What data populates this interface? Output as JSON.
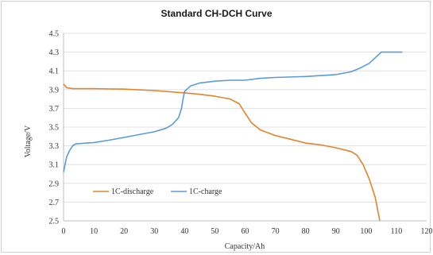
{
  "chart_data": {
    "type": "line",
    "title": "Standard CH-DCH Curve",
    "xlabel": "Capacity/Ah",
    "ylabel": "Voltage/V",
    "xlim": [
      0,
      120
    ],
    "ylim": [
      2.5,
      4.5
    ],
    "x_ticks": [
      "0",
      "10",
      "20",
      "30",
      "40",
      "50",
      "60",
      "70",
      "80",
      "90",
      "100",
      "110",
      "120"
    ],
    "y_ticks": [
      "2.5",
      "2.7",
      "2.9",
      "3.1",
      "3.3",
      "3.5",
      "3.7",
      "3.9",
      "4.1",
      "4.3",
      "4.5"
    ],
    "grid": "horizontal",
    "legend_position": "bottom-left",
    "series": [
      {
        "name": "1C-discharge",
        "color": "#E3832A",
        "points": [
          [
            0,
            3.96
          ],
          [
            1,
            3.92
          ],
          [
            3,
            3.91
          ],
          [
            10,
            3.91
          ],
          [
            20,
            3.905
          ],
          [
            30,
            3.89
          ],
          [
            40,
            3.865
          ],
          [
            45,
            3.85
          ],
          [
            50,
            3.83
          ],
          [
            55,
            3.8
          ],
          [
            58,
            3.75
          ],
          [
            60,
            3.65
          ],
          [
            62,
            3.55
          ],
          [
            65,
            3.47
          ],
          [
            70,
            3.41
          ],
          [
            75,
            3.37
          ],
          [
            80,
            3.33
          ],
          [
            85,
            3.31
          ],
          [
            90,
            3.28
          ],
          [
            95,
            3.24
          ],
          [
            97,
            3.2
          ],
          [
            99,
            3.1
          ],
          [
            101,
            2.95
          ],
          [
            103,
            2.75
          ],
          [
            104.5,
            2.5
          ]
        ]
      },
      {
        "name": "1C-charge",
        "color": "#5B9BD5",
        "points": [
          [
            0,
            3.02
          ],
          [
            0.5,
            3.1
          ],
          [
            1,
            3.18
          ],
          [
            2,
            3.25
          ],
          [
            3,
            3.3
          ],
          [
            4,
            3.32
          ],
          [
            6,
            3.325
          ],
          [
            10,
            3.335
          ],
          [
            15,
            3.36
          ],
          [
            20,
            3.39
          ],
          [
            25,
            3.42
          ],
          [
            30,
            3.45
          ],
          [
            34,
            3.49
          ],
          [
            36,
            3.53
          ],
          [
            38,
            3.6
          ],
          [
            39,
            3.7
          ],
          [
            39.5,
            3.8
          ],
          [
            40,
            3.88
          ],
          [
            42,
            3.94
          ],
          [
            45,
            3.97
          ],
          [
            50,
            3.99
          ],
          [
            55,
            4.0
          ],
          [
            60,
            4.0
          ],
          [
            65,
            4.02
          ],
          [
            70,
            4.03
          ],
          [
            80,
            4.04
          ],
          [
            90,
            4.06
          ],
          [
            95,
            4.09
          ],
          [
            98,
            4.13
          ],
          [
            101,
            4.18
          ],
          [
            103,
            4.24
          ],
          [
            105,
            4.3
          ],
          [
            112,
            4.3
          ]
        ]
      }
    ]
  }
}
